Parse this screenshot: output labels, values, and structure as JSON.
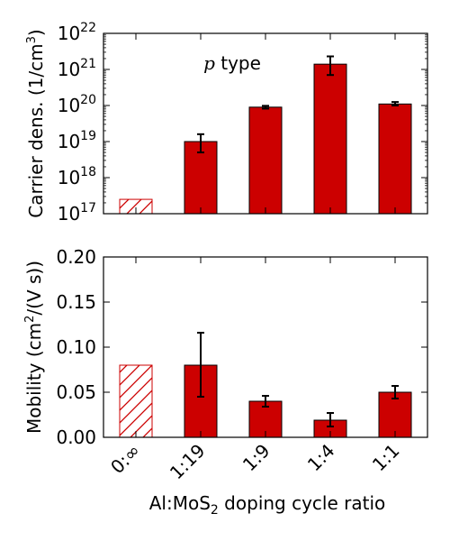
{
  "chart_data": [
    {
      "type": "bar",
      "panel": "top",
      "ylabel_parts": {
        "main": "Carrier dens. (1/cm",
        "sup": "3",
        "close": ")"
      },
      "yscale": "log",
      "ylim": [
        1e+17,
        1e+22
      ],
      "ytick_exponents": [
        "17",
        "18",
        "19",
        "20",
        "21",
        "22"
      ],
      "categories": [
        "0:∞",
        "1:19",
        "1:9",
        "1:4",
        "1:1"
      ],
      "values": [
        2.5e+17,
        1e+19,
        9e+19,
        1.4e+21,
        1.1e+20
      ],
      "error_low": [
        null,
        5e+18,
        8.2e+19,
        7e+20,
        1e+20
      ],
      "error_high": [
        null,
        1.6e+19,
        9.8e+19,
        2.3e+21,
        1.25e+20
      ],
      "hatched": [
        true,
        false,
        false,
        false,
        false
      ],
      "annotation": {
        "italic": "p",
        "text": " type"
      },
      "grid": false
    },
    {
      "type": "bar",
      "panel": "bottom",
      "ylabel_parts": {
        "main": "Mobility (cm",
        "sup": "2",
        "close": "/(V s))"
      },
      "ylim": [
        0,
        0.2
      ],
      "yticks": [
        "0.00",
        "0.05",
        "0.10",
        "0.15",
        "0.20"
      ],
      "ytick_values": [
        0,
        0.05,
        0.1,
        0.15,
        0.2
      ],
      "categories": [
        "0:∞",
        "1:19",
        "1:9",
        "1:4",
        "1:1"
      ],
      "values": [
        0.08,
        0.08,
        0.04,
        0.019,
        0.05
      ],
      "error_low": [
        null,
        0.045,
        0.034,
        0.012,
        0.043
      ],
      "error_high": [
        null,
        0.116,
        0.046,
        0.027,
        0.057
      ],
      "hatched": [
        true,
        false,
        false,
        false,
        false
      ],
      "xlabel_parts": {
        "main": "Al:MoS",
        "sub": "2",
        "rest": " doping cycle ratio"
      },
      "grid": false
    }
  ],
  "colors": {
    "bar_fill": "#cc0000",
    "hatch": "#cc0000",
    "axis": "#000000"
  }
}
